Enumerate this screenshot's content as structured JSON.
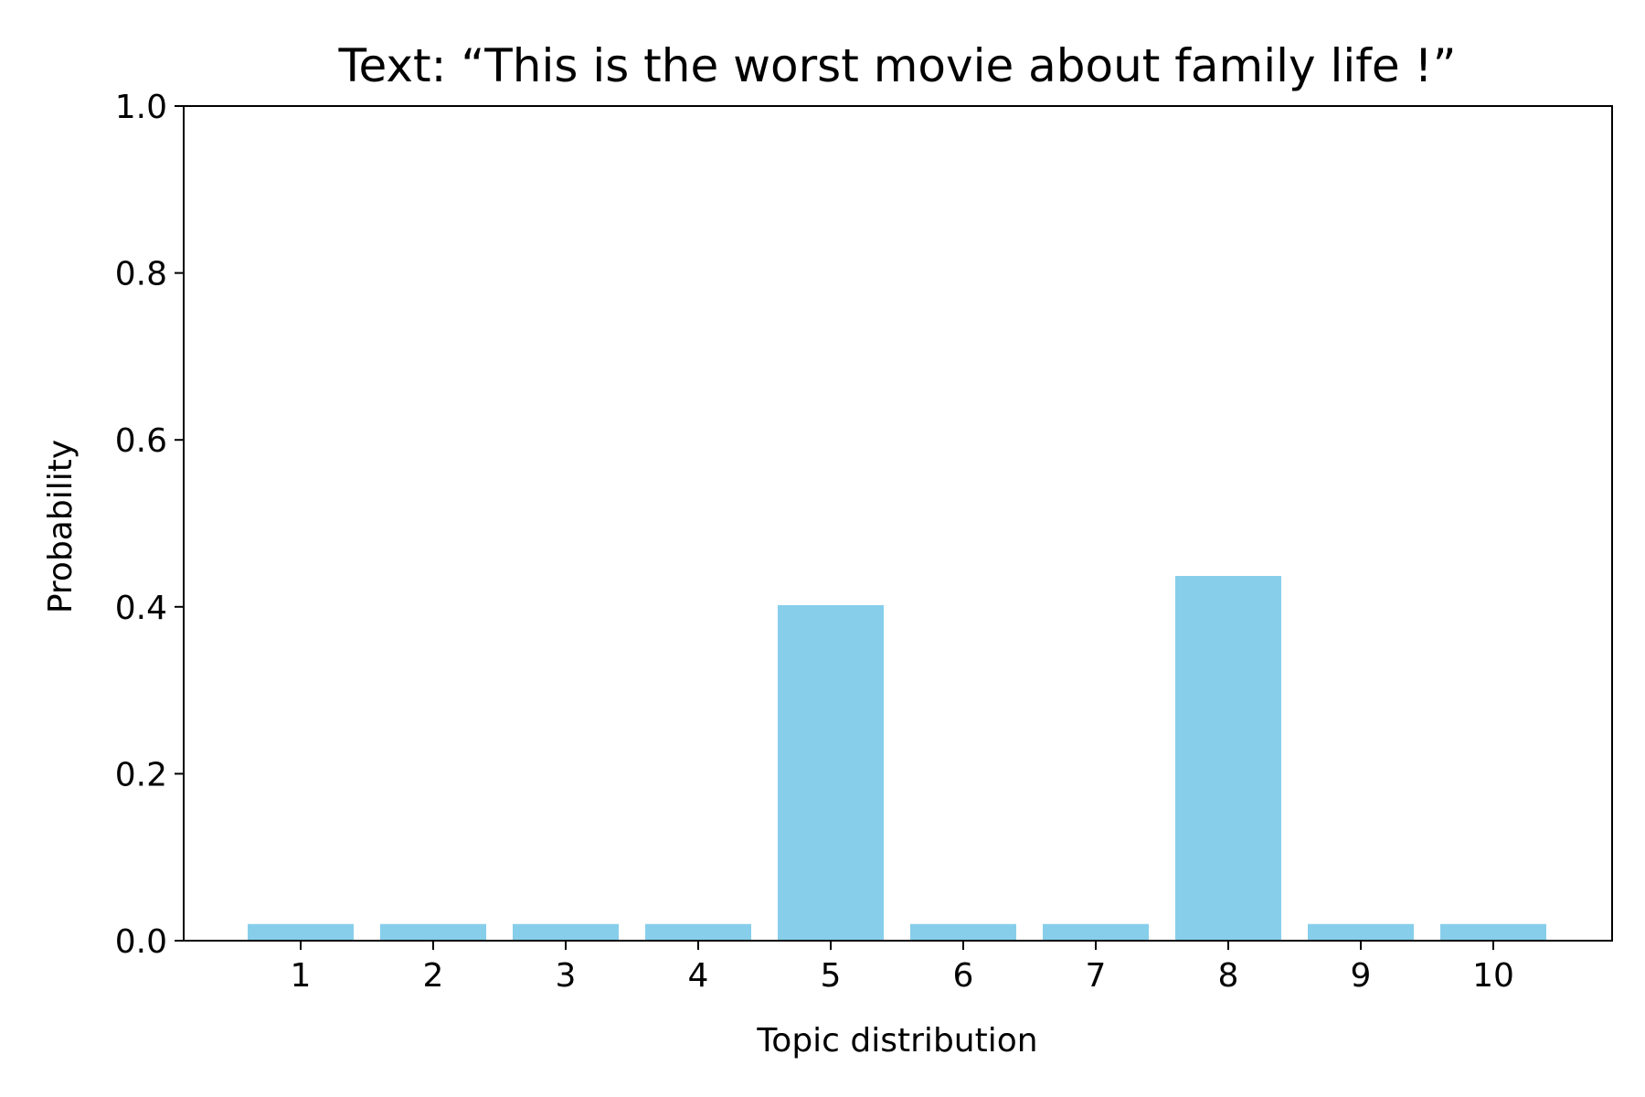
{
  "chart_data": {
    "type": "bar",
    "title": "Text: “This is the worst movie about family life !”",
    "xlabel": "Topic distribution",
    "ylabel": "Probability",
    "categories": [
      "1",
      "2",
      "3",
      "4",
      "5",
      "6",
      "7",
      "8",
      "9",
      "10"
    ],
    "values": [
      0.02,
      0.02,
      0.02,
      0.02,
      0.402,
      0.02,
      0.02,
      0.437,
      0.02,
      0.02
    ],
    "ylim": [
      0,
      1.0
    ],
    "yticks": [
      "0.0",
      "0.2",
      "0.4",
      "0.6",
      "0.8",
      "1.0"
    ],
    "bar_color": "#87CEEB",
    "grid": false,
    "legend": false
  }
}
